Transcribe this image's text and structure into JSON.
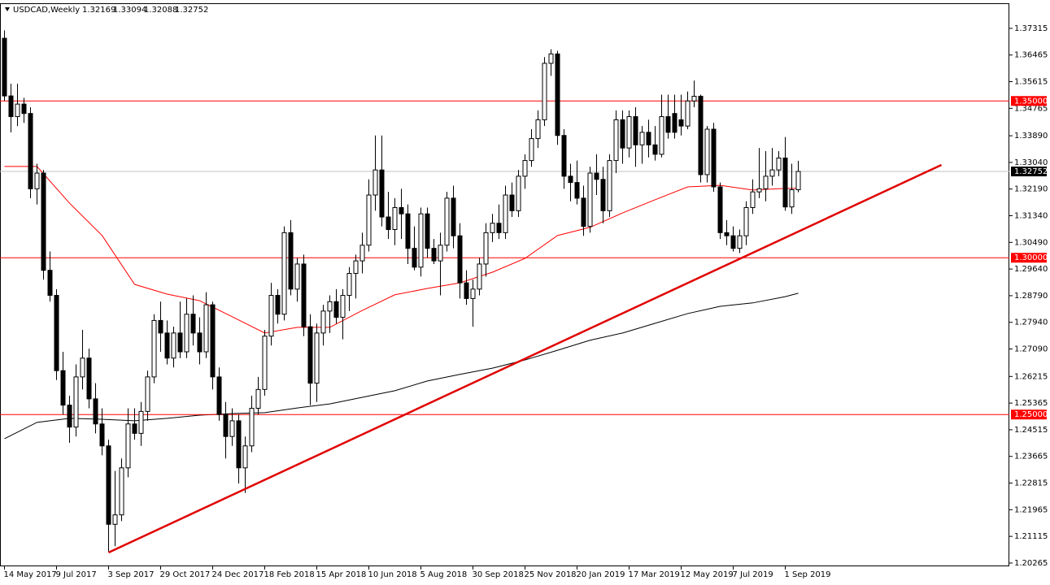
{
  "chart_data": {
    "type": "candlestick",
    "symbol": "USDCAD,Weekly",
    "categories": [
      "14 May 2017",
      null,
      null,
      null,
      null,
      null,
      null,
      null,
      "9 Jul 2017",
      null,
      null,
      null,
      null,
      null,
      null,
      null,
      "3 Sep 2017",
      null,
      null,
      null,
      null,
      null,
      null,
      null,
      "29 Oct 2017",
      null,
      null,
      null,
      null,
      null,
      null,
      null,
      "24 Dec 2017",
      null,
      null,
      null,
      null,
      null,
      null,
      null,
      "18 Feb 2018",
      null,
      null,
      null,
      null,
      null,
      null,
      null,
      "15 Apr 2018",
      null,
      null,
      null,
      null,
      null,
      null,
      null,
      "10 Jun 2018",
      null,
      null,
      null,
      null,
      null,
      null,
      null,
      "5 Aug 2018",
      null,
      null,
      null,
      null,
      null,
      null,
      null,
      "30 Sep 2018",
      null,
      null,
      null,
      null,
      null,
      null,
      null,
      "25 Nov 2018",
      null,
      null,
      null,
      null,
      null,
      null,
      null,
      "20 Jan 2019",
      null,
      null,
      null,
      null,
      null,
      null,
      null,
      "17 Mar 2019",
      null,
      null,
      null,
      null,
      null,
      null,
      null,
      "12 May 2019",
      null,
      null,
      null,
      null,
      null,
      null,
      null,
      "7 Jul 2019",
      null,
      null,
      null,
      null,
      null,
      null,
      null,
      "1 Sep 2019",
      null,
      null
    ],
    "open": [
      1.37,
      1.3516,
      1.345,
      1.349,
      1.346,
      1.322,
      1.327,
      1.296,
      1.288,
      1.264,
      1.253,
      1.246,
      1.262,
      1.268,
      1.255,
      1.247,
      1.24,
      1.215,
      1.218,
      1.233,
      1.247,
      1.244,
      1.251,
      1.262,
      1.28,
      1.276,
      1.268,
      1.276,
      1.27,
      1.282,
      1.276,
      1.27,
      1.285,
      1.262,
      1.25,
      1.243,
      1.248,
      1.233,
      1.24,
      1.252,
      1.258,
      1.275,
      1.288,
      1.282,
      1.308,
      1.29,
      1.298,
      1.278,
      1.26,
      1.276,
      1.283,
      1.286,
      1.281,
      1.288,
      1.295,
      1.299,
      1.304,
      1.32,
      1.328,
      1.313,
      1.309,
      1.316,
      1.314,
      1.303,
      1.297,
      1.314,
      1.303,
      1.299,
      1.304,
      1.319,
      1.307,
      1.292,
      1.287,
      1.29,
      1.298,
      1.308,
      1.311,
      1.308,
      1.32,
      1.315,
      1.326,
      1.331,
      1.338,
      1.344,
      1.362,
      1.365,
      1.339,
      1.326,
      1.324,
      1.319,
      1.31,
      1.327,
      1.325,
      1.315,
      1.331,
      1.344,
      1.335,
      1.345,
      1.336,
      1.34,
      1.336,
      1.333,
      1.345,
      1.346,
      1.344,
      1.342,
      1.35,
      1.3515,
      1.3265,
      1.341,
      1.3226,
      1.308,
      1.307,
      1.303,
      1.307,
      1.316,
      1.321,
      1.322,
      1.326,
      1.328,
      1.3318,
      1.3162,
      1.32169
    ],
    "high": [
      1.3725,
      1.3555,
      1.3555,
      1.351,
      1.348,
      1.33,
      1.328,
      1.302,
      1.29,
      1.27,
      1.256,
      1.266,
      1.277,
      1.271,
      1.26,
      1.252,
      1.242,
      1.232,
      1.236,
      1.252,
      1.252,
      1.254,
      1.264,
      1.282,
      1.286,
      1.28,
      1.278,
      1.286,
      1.287,
      1.288,
      1.281,
      1.289,
      1.286,
      1.265,
      1.254,
      1.252,
      1.25,
      1.243,
      1.256,
      1.262,
      1.277,
      1.292,
      1.29,
      1.31,
      1.312,
      1.3,
      1.301,
      1.282,
      1.279,
      1.285,
      1.288,
      1.29,
      1.29,
      1.297,
      1.301,
      1.308,
      1.325,
      1.339,
      1.339,
      1.321,
      1.319,
      1.322,
      1.317,
      1.31,
      1.316,
      1.316,
      1.306,
      1.308,
      1.321,
      1.323,
      1.311,
      1.296,
      1.293,
      1.3,
      1.311,
      1.314,
      1.317,
      1.323,
      1.324,
      1.328,
      1.333,
      1.341,
      1.347,
      1.364,
      1.3665,
      1.366,
      1.341,
      1.33,
      1.331,
      1.323,
      1.329,
      1.333,
      1.329,
      1.333,
      1.347,
      1.347,
      1.347,
      1.348,
      1.342,
      1.344,
      1.342,
      1.352,
      1.352,
      1.352,
      1.352,
      1.353,
      1.3565,
      1.352,
      1.342,
      1.343,
      1.324,
      1.312,
      1.31,
      1.309,
      1.318,
      1.325,
      1.335,
      1.334,
      1.335,
      1.334,
      1.3385,
      1.33,
      1.33094
    ],
    "low": [
      1.35,
      1.34,
      1.342,
      1.343,
      1.319,
      1.317,
      1.293,
      1.286,
      1.261,
      1.25,
      1.241,
      1.243,
      1.258,
      1.252,
      1.244,
      1.237,
      1.2061,
      1.208,
      1.216,
      1.23,
      1.242,
      1.24,
      1.248,
      1.26,
      1.27,
      1.266,
      1.265,
      1.268,
      1.268,
      1.272,
      1.266,
      1.268,
      1.258,
      1.248,
      1.236,
      1.24,
      1.228,
      1.225,
      1.238,
      1.25,
      1.256,
      1.272,
      1.279,
      1.28,
      1.288,
      1.286,
      1.275,
      1.253,
      1.254,
      1.272,
      1.276,
      1.279,
      1.274,
      1.283,
      1.287,
      1.295,
      1.302,
      1.315,
      1.31,
      1.306,
      1.304,
      1.306,
      1.298,
      1.296,
      1.294,
      1.3,
      1.298,
      1.288,
      1.302,
      1.303,
      1.287,
      1.285,
      1.278,
      1.288,
      1.294,
      1.305,
      1.306,
      1.306,
      1.313,
      1.313,
      1.322,
      1.329,
      1.335,
      1.342,
      1.358,
      1.336,
      1.322,
      1.318,
      1.317,
      1.307,
      1.308,
      1.32,
      1.311,
      1.313,
      1.327,
      1.33,
      1.332,
      1.329,
      1.33,
      1.332,
      1.331,
      1.332,
      1.338,
      1.338,
      1.339,
      1.341,
      1.348,
      1.324,
      1.324,
      1.321,
      1.306,
      1.304,
      1.302,
      1.3015,
      1.304,
      1.314,
      1.319,
      1.318,
      1.323,
      1.326,
      1.315,
      1.314,
      1.32088
    ],
    "close": [
      1.3516,
      1.345,
      1.349,
      1.346,
      1.322,
      1.327,
      1.296,
      1.288,
      1.264,
      1.253,
      1.246,
      1.262,
      1.268,
      1.255,
      1.247,
      1.24,
      1.215,
      1.218,
      1.233,
      1.247,
      1.244,
      1.251,
      1.262,
      1.28,
      1.276,
      1.268,
      1.276,
      1.27,
      1.282,
      1.276,
      1.27,
      1.285,
      1.262,
      1.25,
      1.243,
      1.248,
      1.233,
      1.24,
      1.252,
      1.258,
      1.275,
      1.288,
      1.282,
      1.308,
      1.29,
      1.298,
      1.278,
      1.26,
      1.276,
      1.283,
      1.286,
      1.281,
      1.288,
      1.295,
      1.299,
      1.304,
      1.32,
      1.328,
      1.313,
      1.309,
      1.316,
      1.314,
      1.303,
      1.297,
      1.314,
      1.303,
      1.299,
      1.304,
      1.319,
      1.307,
      1.292,
      1.287,
      1.29,
      1.298,
      1.308,
      1.311,
      1.308,
      1.32,
      1.315,
      1.326,
      1.331,
      1.338,
      1.344,
      1.362,
      1.365,
      1.339,
      1.326,
      1.324,
      1.319,
      1.31,
      1.327,
      1.325,
      1.315,
      1.331,
      1.344,
      1.335,
      1.345,
      1.336,
      1.34,
      1.336,
      1.333,
      1.345,
      1.34,
      1.34,
      1.342,
      1.35,
      1.3515,
      1.3265,
      1.341,
      1.3226,
      1.308,
      1.307,
      1.303,
      1.307,
      1.316,
      1.321,
      1.322,
      1.326,
      1.328,
      1.3318,
      1.3162,
      1.3217,
      1.32752
    ],
    "up_color": "#ffffff",
    "down_color": "#000000",
    "indicators": [
      {
        "color": "#ff0000",
        "x": [
          0,
          5,
          10,
          15,
          20,
          25,
          30,
          35,
          40,
          45,
          50,
          55,
          60,
          65,
          70,
          75,
          80,
          85,
          90,
          95,
          100,
          105,
          110,
          115,
          120,
          122
        ],
        "values": [
          1.3291,
          1.3291,
          1.3174,
          1.3071,
          1.2915,
          1.2884,
          1.2863,
          1.2812,
          1.276,
          1.2778,
          1.2778,
          1.2832,
          1.2882,
          1.2902,
          1.292,
          1.2954,
          1.2998,
          1.3071,
          1.3097,
          1.3143,
          1.3185,
          1.3226,
          1.3231,
          1.3216,
          1.3221,
          1.3221
        ]
      },
      {
        "color": "#000000",
        "x": [
          0,
          5,
          10,
          15,
          20,
          25,
          30,
          35,
          40,
          45,
          50,
          55,
          60,
          65,
          70,
          75,
          80,
          85,
          90,
          95,
          100,
          105,
          110,
          115,
          120,
          122
        ],
        "values": [
          1.2423,
          1.2475,
          1.2488,
          1.2485,
          1.248,
          1.2488,
          1.2498,
          1.2503,
          1.2506,
          1.2521,
          1.2534,
          1.2555,
          1.2576,
          1.2607,
          1.2628,
          1.2648,
          1.2674,
          1.2705,
          1.2737,
          1.276,
          1.2791,
          1.2822,
          1.2845,
          1.2856,
          1.2876,
          1.2887
        ]
      }
    ],
    "trendline": {
      "color": "#e00000",
      "x": [
        16,
        144
      ],
      "values": [
        1.206,
        1.3296
      ]
    },
    "levels": [
      {
        "value": 1.35,
        "label": "1.35000"
      },
      {
        "value": 1.3,
        "label": "1.30000"
      },
      {
        "value": 1.25,
        "label": "1.25000"
      }
    ],
    "level_color": "#ff0000",
    "ylim": [
      1.2016,
      1.3809
    ],
    "yticks": [
      1.37315,
      1.36465,
      1.35615,
      1.34765,
      {
        "value": 1.3389,
        "label": "1.33890"
      },
      {
        "value": 1.3304,
        "label": "1.33040"
      },
      {
        "value": 1.3219,
        "label": "1.32190"
      },
      {
        "value": 1.3134,
        "label": "1.31340"
      },
      {
        "value": 1.3049,
        "label": "1.30490"
      },
      {
        "value": 1.2964,
        "label": "1.29640"
      },
      {
        "value": 1.2879,
        "label": "1.28790"
      },
      {
        "value": 1.2794,
        "label": "1.27940"
      },
      {
        "value": 1.2709,
        "label": "1.27090"
      },
      1.26215,
      1.25365,
      1.24515,
      1.23665,
      1.22815,
      1.21965,
      1.21115,
      1.20265
    ]
  }
}
